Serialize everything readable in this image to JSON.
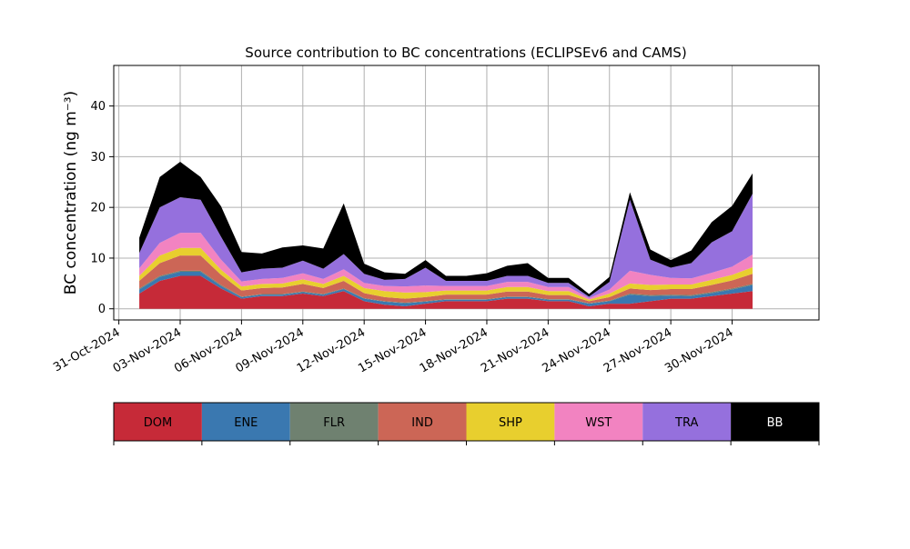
{
  "chart_data": {
    "type": "area",
    "stacked": true,
    "title": "Source contribution to BC concentrations (ECLIPSEv6 and CAMS)",
    "ylabel": "BC concentration (ng m⁻³)",
    "xlabel": "",
    "x_range": [
      "2024-10-30T18:00",
      "2024-12-04T06:00"
    ],
    "ylim": [
      -2.2,
      48
    ],
    "yticks": [
      0,
      10,
      20,
      30,
      40
    ],
    "xticks": [
      "2024-10-31",
      "2024-11-03",
      "2024-11-06",
      "2024-11-09",
      "2024-11-12",
      "2024-11-15",
      "2024-11-18",
      "2024-11-21",
      "2024-11-24",
      "2024-11-27",
      "2024-11-30"
    ],
    "xtick_labels": [
      "31-Oct-2024",
      "03-Nov-2024",
      "06-Nov-2024",
      "09-Nov-2024",
      "12-Nov-2024",
      "15-Nov-2024",
      "18-Nov-2024",
      "21-Nov-2024",
      "24-Nov-2024",
      "27-Nov-2024",
      "30-Nov-2024"
    ],
    "grid": true,
    "x": [
      "2024-11-01",
      "2024-11-02",
      "2024-11-03",
      "2024-11-04",
      "2024-11-05",
      "2024-11-06",
      "2024-11-07",
      "2024-11-08",
      "2024-11-09",
      "2024-11-10",
      "2024-11-11",
      "2024-11-12",
      "2024-11-13",
      "2024-11-14",
      "2024-11-15",
      "2024-11-16",
      "2024-11-17",
      "2024-11-18",
      "2024-11-19",
      "2024-11-20",
      "2024-11-21",
      "2024-11-22",
      "2024-11-23",
      "2024-11-24",
      "2024-11-25",
      "2024-11-26",
      "2024-11-27",
      "2024-11-28",
      "2024-11-29",
      "2024-11-30",
      "2024-12-01"
    ],
    "series": [
      {
        "name": "DOM",
        "color": "#c62a38",
        "values": [
          3.0,
          5.5,
          6.5,
          6.5,
          4.0,
          2.0,
          2.5,
          2.5,
          3.0,
          2.5,
          3.5,
          1.5,
          0.8,
          0.5,
          1.0,
          1.5,
          1.5,
          1.5,
          2.0,
          2.0,
          1.5,
          1.5,
          0.5,
          1.0,
          1.0,
          1.5,
          2.0,
          2.0,
          2.5,
          3.0,
          3.5
        ]
      },
      {
        "name": "ENE",
        "color": "#3a78b0",
        "values": [
          0.8,
          0.8,
          0.8,
          0.8,
          0.5,
          0.3,
          0.3,
          0.3,
          0.3,
          0.3,
          0.4,
          0.5,
          0.6,
          0.6,
          0.4,
          0.3,
          0.3,
          0.3,
          0.3,
          0.3,
          0.3,
          0.3,
          0.5,
          0.5,
          1.8,
          1.0,
          0.6,
          0.5,
          0.6,
          0.8,
          1.2
        ]
      },
      {
        "name": "FLR",
        "color": "#6f8170",
        "values": [
          0.2,
          0.2,
          0.2,
          0.2,
          0.2,
          0.1,
          0.1,
          0.1,
          0.1,
          0.1,
          0.1,
          0.1,
          0.1,
          0.1,
          0.1,
          0.1,
          0.1,
          0.1,
          0.1,
          0.1,
          0.1,
          0.1,
          0.1,
          0.1,
          0.2,
          0.2,
          0.2,
          0.2,
          0.2,
          0.2,
          0.2
        ]
      },
      {
        "name": "IND",
        "color": "#cc6656",
        "values": [
          1.5,
          2.5,
          3.0,
          3.0,
          2.0,
          1.2,
          1.2,
          1.3,
          1.5,
          1.2,
          1.5,
          1.0,
          0.8,
          0.8,
          0.8,
          0.9,
          0.9,
          0.9,
          1.0,
          1.0,
          0.8,
          0.8,
          0.4,
          0.7,
          1.0,
          1.0,
          1.1,
          1.2,
          1.4,
          1.6,
          2.0
        ]
      },
      {
        "name": "SHP",
        "color": "#e8cf2e",
        "values": [
          1.0,
          1.5,
          1.5,
          1.5,
          1.0,
          0.8,
          0.8,
          0.8,
          0.9,
          0.8,
          1.0,
          1.0,
          1.2,
          1.2,
          1.0,
          0.8,
          0.8,
          0.8,
          0.9,
          0.9,
          0.8,
          0.8,
          0.3,
          0.7,
          1.0,
          1.0,
          0.9,
          0.9,
          1.0,
          1.1,
          1.3
        ]
      },
      {
        "name": "WST",
        "color": "#f283c1",
        "values": [
          1.5,
          2.5,
          3.0,
          3.0,
          2.0,
          1.0,
          1.0,
          1.1,
          1.2,
          1.0,
          1.3,
          1.0,
          1.0,
          1.2,
          1.3,
          0.9,
          0.9,
          0.9,
          1.0,
          1.0,
          0.8,
          0.8,
          0.3,
          0.8,
          2.5,
          2.0,
          1.3,
          1.2,
          1.4,
          1.6,
          2.5
        ]
      },
      {
        "name": "TRA",
        "color": "#9570dd",
        "values": [
          3.0,
          7.0,
          7.0,
          6.5,
          4.5,
          1.8,
          2.0,
          2.0,
          2.5,
          2.0,
          3.0,
          1.8,
          1.2,
          1.5,
          3.5,
          1.0,
          1.0,
          1.0,
          1.2,
          1.2,
          0.8,
          0.8,
          0.3,
          1.5,
          14.0,
          3.0,
          2.0,
          3.0,
          6.0,
          7.0,
          12.0
        ]
      },
      {
        "name": "BB",
        "color": "#000000",
        "values": [
          3.0,
          6.0,
          7.0,
          4.5,
          6.0,
          4.0,
          3.0,
          4.0,
          3.0,
          4.0,
          10.0,
          2.0,
          1.5,
          1.0,
          1.5,
          1.0,
          1.0,
          1.5,
          2.0,
          2.5,
          1.0,
          1.0,
          0.5,
          1.0,
          1.5,
          2.0,
          1.5,
          2.5,
          4.0,
          5.0,
          4.0
        ]
      }
    ],
    "legend": {
      "placement": "bottom colorbar",
      "labels": [
        "DOM",
        "ENE",
        "FLR",
        "IND",
        "SHP",
        "WST",
        "TRA",
        "BB"
      ],
      "label_colors": [
        "#000000",
        "#000000",
        "#000000",
        "#000000",
        "#000000",
        "#000000",
        "#000000",
        "#ffffff"
      ]
    }
  }
}
